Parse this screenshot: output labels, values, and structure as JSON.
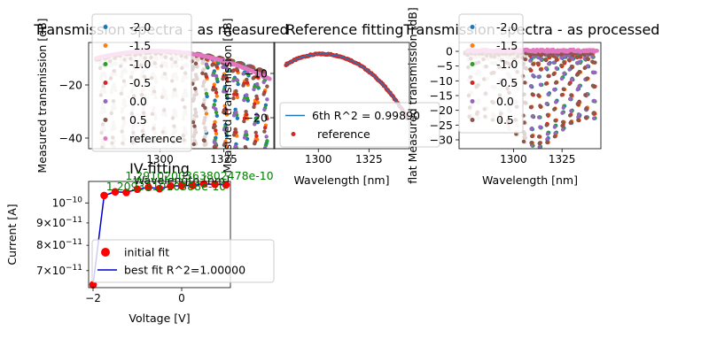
{
  "chart_data": [
    {
      "type": "scatter",
      "title": "Transmission spectra - as measured",
      "xlabel": "Wavelength [nm]",
      "ylabel": "Measured transmission [dB]",
      "xlim": [
        1272,
        1345
      ],
      "ylim": [
        -44,
        -4
      ],
      "xticks": [
        1300,
        1325
      ],
      "yticks": [
        -20,
        -40
      ],
      "legend_position": "upper-left",
      "series": [
        {
          "name": "-2.0",
          "color": "#1f77b4"
        },
        {
          "name": "-1.5",
          "color": "#ff7f0e"
        },
        {
          "name": "-1.0",
          "color": "#2ca02c"
        },
        {
          "name": "-0.5",
          "color": "#d62728"
        },
        {
          "name": "0.0",
          "color": "#9467bd"
        },
        {
          "name": "0.5",
          "color": "#8c564b"
        },
        {
          "name": "reference",
          "color": "#e377c2"
        }
      ]
    },
    {
      "type": "scatter",
      "title": "Reference fitting",
      "xlabel": "Wavelength [nm]",
      "ylabel": "Measured transmission [dB]",
      "xlim": [
        1278,
        1345
      ],
      "ylim": [
        -27,
        -3
      ],
      "xticks": [
        1300,
        1325
      ],
      "yticks": [
        -10,
        -20
      ],
      "legend_position": "lower-left",
      "series": [
        {
          "name": "6th R^2 = 0.99890",
          "color": "#1f77b4",
          "style": "line"
        },
        {
          "name": "reference",
          "color": "#d62728",
          "style": "points"
        }
      ]
    },
    {
      "type": "scatter",
      "title": "Transmission spectra - as processed",
      "xlabel": "Wavelength [nm]",
      "ylabel": "flat Measured transmission [dB]",
      "xlim": [
        1272,
        1345
      ],
      "ylim": [
        -33,
        3
      ],
      "xticks": [
        1300,
        1325
      ],
      "yticks": [
        0,
        -5,
        -10,
        -15,
        -20,
        -25,
        -30
      ],
      "legend_position": "upper-left",
      "series": [
        {
          "name": "-2.0",
          "color": "#1f77b4"
        },
        {
          "name": "-1.5",
          "color": "#ff7f0e"
        },
        {
          "name": "-1.0",
          "color": "#2ca02c"
        },
        {
          "name": "-0.5",
          "color": "#d62728"
        },
        {
          "name": "0.0",
          "color": "#9467bd"
        },
        {
          "name": "0.5",
          "color": "#8c564b"
        }
      ]
    },
    {
      "type": "scatter",
      "title": "IV-fitting",
      "xlabel": "Voltage [V]",
      "ylabel": "Current [A]",
      "xlim": [
        -2.1,
        1.1
      ],
      "yscale": "log",
      "ylim": [
        6.4e-11,
        1.12e-10
      ],
      "xticks": [
        -2,
        0
      ],
      "xtick_labels": [
        "−2",
        "0"
      ],
      "ytick_labels": [
        "10^-10",
        "9×10^-11",
        "8×10^-11",
        "7×10^-11"
      ],
      "legend_position": "lower-right",
      "series": [
        {
          "name": "initial fit",
          "color": "#ff0000",
          "style": "points",
          "x": [
            -2.0,
            -1.75,
            -1.5,
            -1.25,
            -1.0,
            -0.75,
            -0.5,
            -0.25,
            0.0,
            0.25,
            0.5,
            0.75,
            1.0
          ],
          "y": [
            6.5e-11,
            1.04e-10,
            1.06e-10,
            1.057e-10,
            1.075e-10,
            1.085e-10,
            1.078e-10,
            1.093e-10,
            1.095e-10,
            1.096e-10,
            1.105e-10,
            1.103e-10,
            1.1e-10
          ]
        },
        {
          "name": "best fit R^2=1.00000",
          "color": "#0000cc",
          "style": "line",
          "x": [
            -2.0,
            -1.75,
            -1.5,
            -1.25,
            -1.0,
            -0.75,
            -0.5,
            -0.25,
            0.0,
            0.25,
            0.5,
            0.75,
            1.0
          ],
          "y": [
            6.5e-11,
            1.04e-10,
            1.06e-10,
            1.057e-10,
            1.075e-10,
            1.085e-10,
            1.078e-10,
            1.093e-10,
            1.095e-10,
            1.096e-10,
            1.105e-10,
            1.103e-10,
            1.1e-10
          ]
        }
      ],
      "annotations": [
        {
          "text": "1.209331010388e-10",
          "color": "#008000",
          "x": -0.35,
          "y": 1.095e-10
        },
        {
          "text": "1.2910200363802478e-10",
          "color": "#008000",
          "x": 0.4,
          "y": 1.125e-10
        }
      ]
    }
  ]
}
